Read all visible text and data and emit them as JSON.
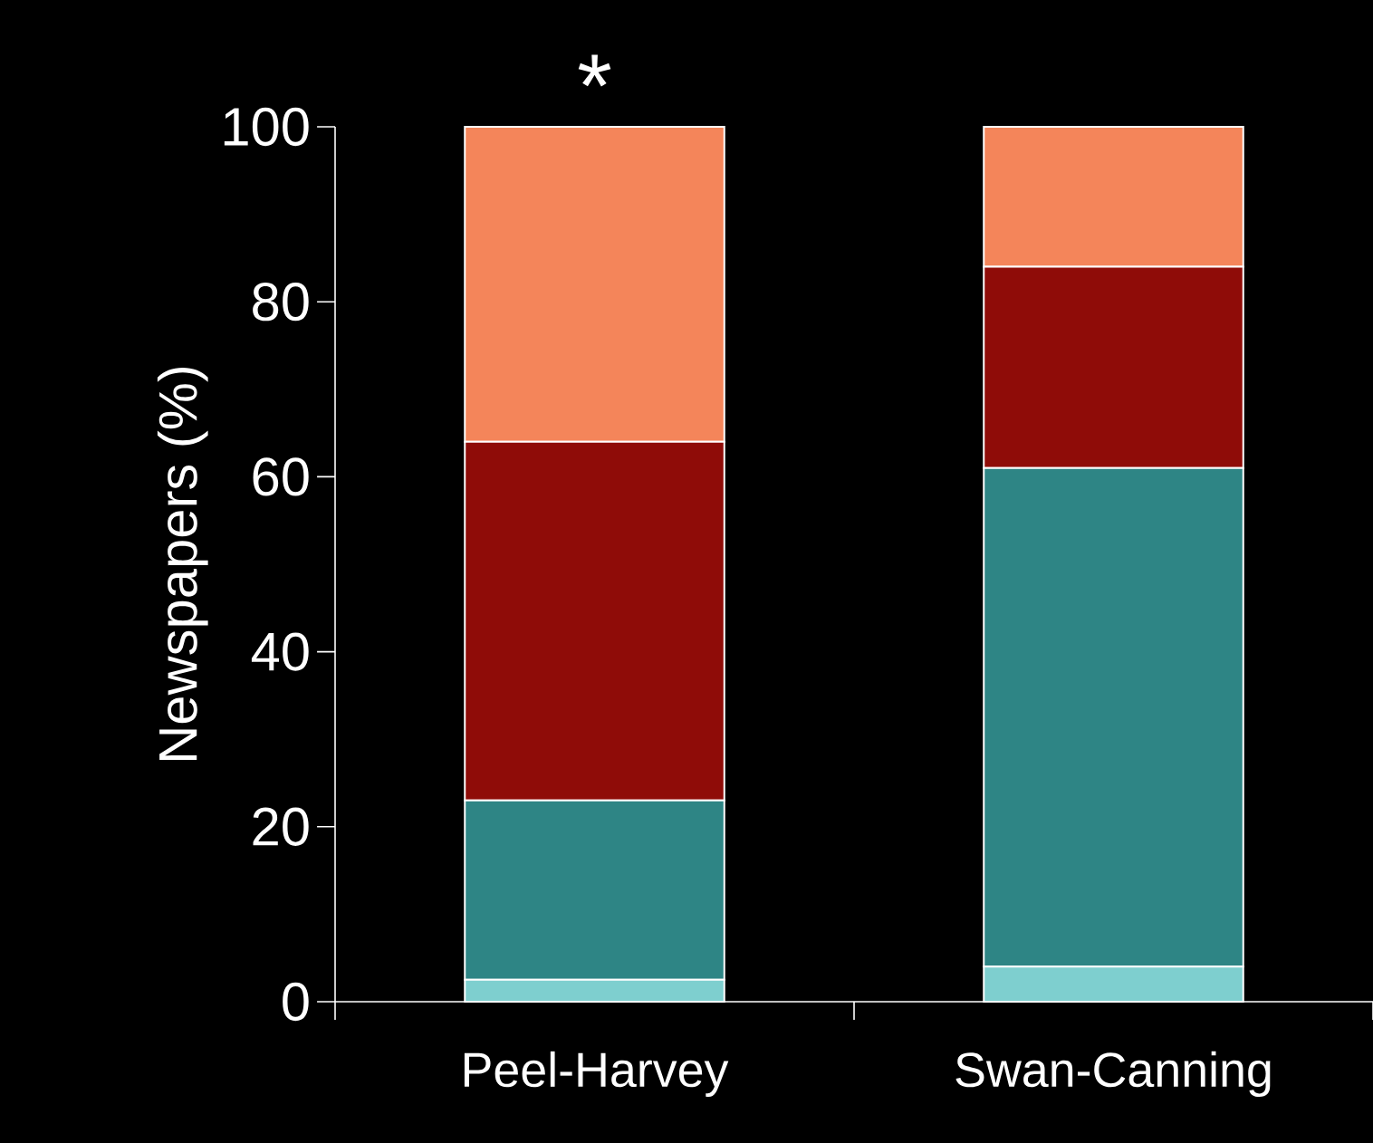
{
  "chart_data": {
    "type": "bar",
    "stacked": true,
    "ylabel": "Newspapers (%)",
    "categories": [
      "Peel-Harvey",
      "Swan-Canning"
    ],
    "series": [
      {
        "color": "#7ecfcf",
        "values": [
          2.5,
          4
        ]
      },
      {
        "color": "#2e8585",
        "values": [
          20.5,
          57
        ]
      },
      {
        "color": "#8f0c08",
        "values": [
          41,
          23
        ]
      },
      {
        "color": "#f4855a",
        "values": [
          36,
          16
        ]
      }
    ],
    "ylim": [
      0,
      100
    ],
    "yticks": [
      0,
      20,
      40,
      60,
      80,
      100
    ],
    "annotations": [
      "*"
    ]
  }
}
